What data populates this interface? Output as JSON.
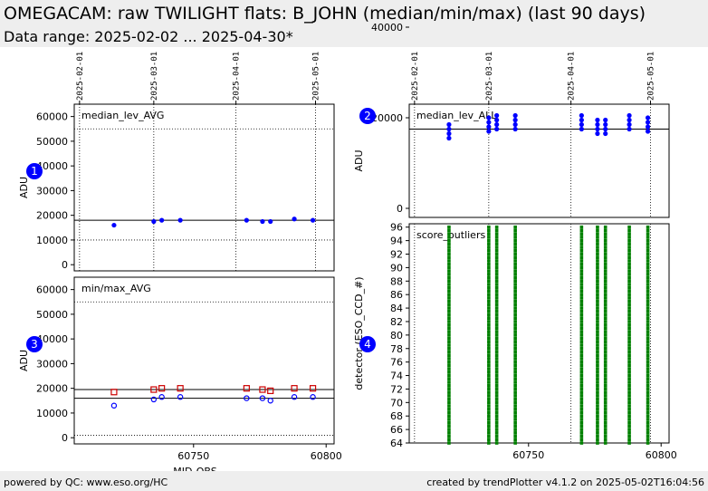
{
  "header": {
    "title": "OMEGACAM: raw TWILIGHT flats: B_JOHN (median/min/max) (last 90 days)",
    "subtitle": "Data range: 2025-02-02 ... 2025-04-30*"
  },
  "footer": {
    "left": "powered by QC: www.eso.org/HC",
    "right": "created by trendPlotter v4.1.2 on 2025-05-02T16:04:56"
  },
  "colors": {
    "marker": "#0000ff",
    "marker_max": "#cc0000",
    "outlier": "#008000",
    "header_bg": "#eeeeee"
  },
  "chart_data": [
    {
      "id": 1,
      "type": "scatter",
      "label": "median_lev_AVG",
      "xlabel": "",
      "ylabel": "ADU",
      "xlim": [
        60705,
        60803
      ],
      "ylim": [
        -2500,
        65000
      ],
      "yticks": [
        0,
        10000,
        20000,
        30000,
        40000,
        50000,
        60000
      ],
      "date_ticks": [
        {
          "mjd": 60707,
          "label": "2025-02-01"
        },
        {
          "mjd": 60735,
          "label": "2025-03-01"
        },
        {
          "mjd": 60766,
          "label": "2025-04-01"
        },
        {
          "mjd": 60796,
          "label": "2025-05-01"
        }
      ],
      "hlines": [
        {
          "y": 18000,
          "style": "solid"
        },
        {
          "y": 10000,
          "style": "dotted"
        },
        {
          "y": 55000,
          "style": "dotted"
        }
      ],
      "series": [
        {
          "marker": "filled-circle",
          "color": "#0000ff",
          "x": [
            60720,
            60735,
            60738,
            60745,
            60770,
            60776,
            60779,
            60788,
            60795
          ],
          "y": [
            16000,
            17500,
            18000,
            18000,
            18000,
            17500,
            17500,
            18500,
            18000
          ]
        }
      ]
    },
    {
      "id": 2,
      "type": "scatter",
      "label": "median_lev_ALL",
      "xlabel": "",
      "ylabel": "ADU",
      "xlim": [
        60705,
        60803
      ],
      "ylim": [
        -2000,
        23000
      ],
      "yticks": [
        0,
        20000,
        40000
      ],
      "ytick_labels": [
        "0",
        "20000",
        "40000"
      ],
      "date_ticks": [
        {
          "mjd": 60707,
          "label": "2025-02-01"
        },
        {
          "mjd": 60735,
          "label": "2025-03-01"
        },
        {
          "mjd": 60766,
          "label": "2025-04-01"
        },
        {
          "mjd": 60796,
          "label": "2025-05-01"
        }
      ],
      "hlines": [
        {
          "y": 17500,
          "style": "solid"
        }
      ],
      "series": [
        {
          "marker": "filled-circle",
          "color": "#0000ff",
          "x": [
            60720,
            60720,
            60720,
            60720,
            60735,
            60735,
            60735,
            60735,
            60738,
            60738,
            60738,
            60738,
            60745,
            60745,
            60745,
            60745,
            60770,
            60770,
            60770,
            60770,
            60776,
            60776,
            60776,
            60776,
            60779,
            60779,
            60779,
            60779,
            60788,
            60788,
            60788,
            60788,
            60795,
            60795,
            60795,
            60795
          ],
          "y": [
            15500,
            16500,
            17500,
            18500,
            17000,
            18000,
            19000,
            20000,
            17500,
            18500,
            19500,
            20500,
            17500,
            18500,
            19500,
            20500,
            17500,
            18500,
            19500,
            20500,
            16500,
            17500,
            18500,
            19500,
            16500,
            17500,
            18500,
            19500,
            17500,
            18500,
            19500,
            20500,
            17000,
            18000,
            19000,
            20000
          ]
        }
      ]
    },
    {
      "id": 3,
      "type": "scatter",
      "label": "min/max_AVG",
      "xlabel": "MJD-OBS",
      "ylabel": "ADU",
      "xlim": [
        60705,
        60803
      ],
      "ylim": [
        -2500,
        65000
      ],
      "yticks": [
        0,
        10000,
        20000,
        30000,
        40000,
        50000,
        60000
      ],
      "xticks": [
        60750,
        60800
      ],
      "hlines": [
        {
          "y": 19500,
          "style": "solid"
        },
        {
          "y": 16000,
          "style": "solid"
        },
        {
          "y": 1000,
          "style": "dotted"
        },
        {
          "y": 55000,
          "style": "dotted"
        }
      ],
      "series": [
        {
          "name": "max",
          "marker": "open-square",
          "color": "#cc0000",
          "x": [
            60720,
            60735,
            60738,
            60745,
            60770,
            60776,
            60779,
            60788,
            60795
          ],
          "y": [
            18500,
            19500,
            20000,
            20000,
            20000,
            19500,
            19000,
            20000,
            20000
          ]
        },
        {
          "name": "min",
          "marker": "open-circle",
          "color": "#0000ff",
          "x": [
            60720,
            60735,
            60738,
            60745,
            60770,
            60776,
            60779,
            60788,
            60795
          ],
          "y": [
            13000,
            15500,
            16500,
            16500,
            16000,
            16000,
            15000,
            16500,
            16500
          ]
        }
      ]
    },
    {
      "id": 4,
      "type": "scatter",
      "label": "score_outliers",
      "xlabel": "",
      "ylabel": "detector (ESO_CCD_#)",
      "xlim": [
        60705,
        60803
      ],
      "ylim": [
        64,
        96.5
      ],
      "yticks": [
        64,
        66,
        68,
        70,
        72,
        74,
        76,
        78,
        80,
        82,
        84,
        86,
        88,
        90,
        92,
        94,
        96
      ],
      "xticks": [
        60750,
        60800
      ],
      "vlines": [
        60707,
        60735,
        60766,
        60796
      ],
      "series": [
        {
          "marker": "filled-square",
          "color": "#008000",
          "columns_x": [
            60720,
            60735,
            60738,
            60745,
            60770,
            60776,
            60779,
            60788,
            60795
          ],
          "y_range": [
            64,
            96
          ]
        }
      ]
    }
  ]
}
